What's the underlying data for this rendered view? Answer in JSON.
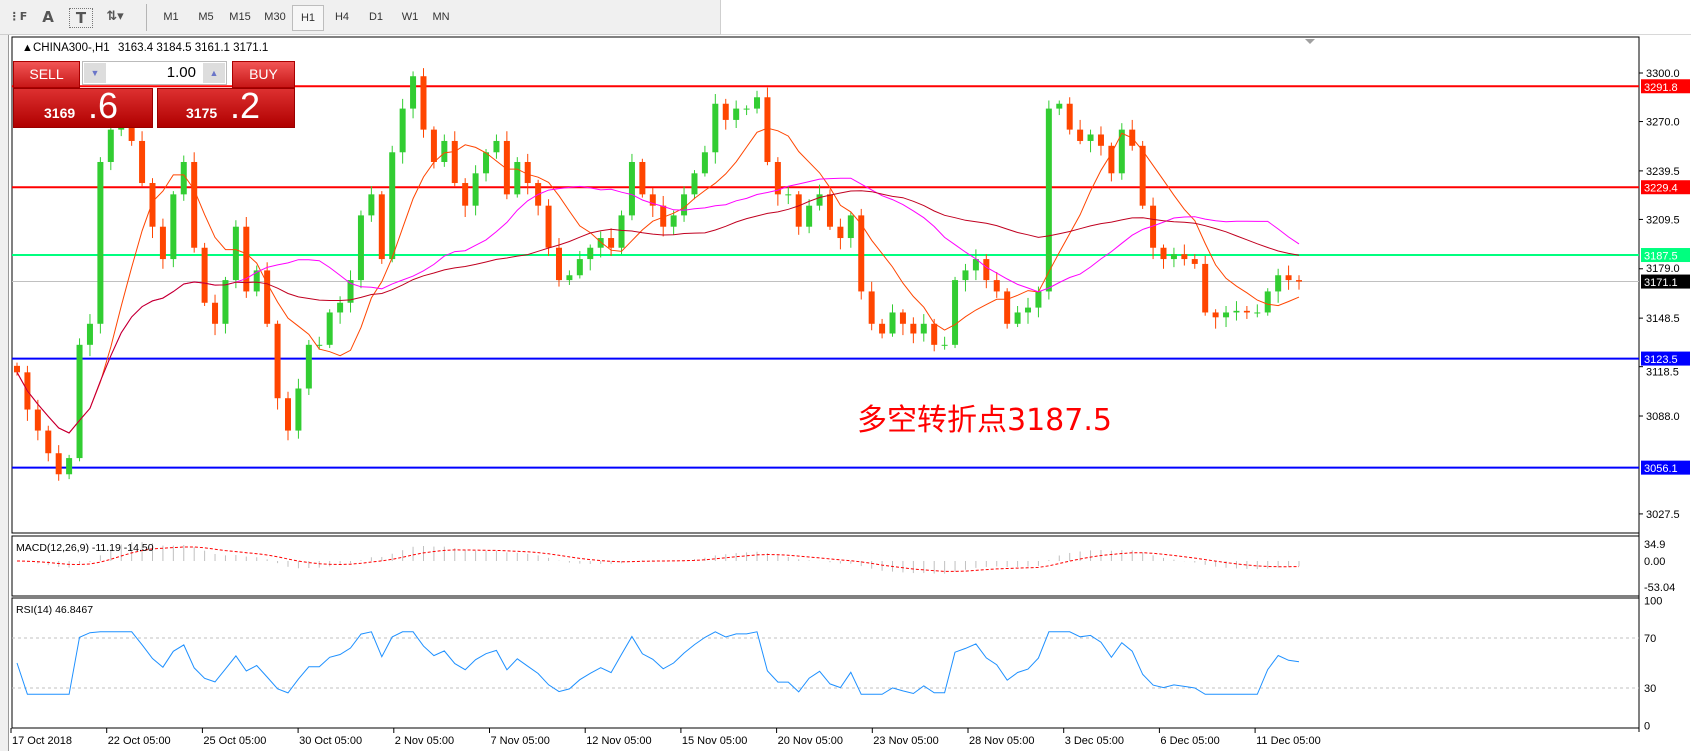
{
  "toolbar": {
    "tools": [
      {
        "name": "grid-fibo-icon",
        "glyph": "⋮F"
      },
      {
        "name": "text-icon",
        "glyph": "A"
      },
      {
        "name": "text-label-icon",
        "glyph": "T"
      },
      {
        "name": "arrows-dropdown-icon",
        "glyph": "⇅▾"
      }
    ],
    "timeframes": [
      "M1",
      "M5",
      "M15",
      "M30",
      "H1",
      "H4",
      "D1",
      "W1",
      "MN"
    ],
    "active_timeframe": "H1"
  },
  "header": {
    "symbol": "CHINA300-,H1",
    "ohlc": "3163.4 3184.5 3161.1 3171.1"
  },
  "trade_panel": {
    "sell_label": "SELL",
    "buy_label": "BUY",
    "volume": "1.00",
    "sell_price_main": "3169",
    "sell_price_big": ".6",
    "buy_price_main": "3175",
    "buy_price_big": ".2"
  },
  "annotation": "多空转折点3187.5",
  "colors": {
    "bull": "#32cd32",
    "bear": "#ff4500",
    "resistance": "#ff0000",
    "pivot": "#00ff7f",
    "support": "#0000ff",
    "ma_fast": "#ff4500",
    "ma_mid": "#ff00ff",
    "ma_slow": "#c00020",
    "rsi": "#1e90ff",
    "macd_signal": "#ff0000",
    "macd_hist": "#c0c0c0"
  },
  "chart_data": {
    "type": "candlestick",
    "price_axis": {
      "ticks": [
        "3300.0",
        "3270.0",
        "3239.5",
        "3209.5",
        "3179.0",
        "3148.5",
        "3118.5",
        "3088.0",
        "3027.5"
      ],
      "range": [
        3027.5,
        3300.0
      ]
    },
    "time_axis": [
      "17 Oct 2018",
      "22 Oct 05:00",
      "25 Oct 05:00",
      "30 Oct 05:00",
      "2 Nov 05:00",
      "7 Nov 05:00",
      "12 Nov 05:00",
      "15 Nov 05:00",
      "20 Nov 05:00",
      "23 Nov 05:00",
      "28 Nov 05:00",
      "3 Dec 05:00",
      "6 Dec 05:00",
      "11 Dec 05:00"
    ],
    "horizontal_lines": [
      {
        "value": "3291.8",
        "type": "resistance"
      },
      {
        "value": "3229.4",
        "type": "resistance"
      },
      {
        "value": "3187.5",
        "type": "pivot"
      },
      {
        "value": "3171.1",
        "type": "current"
      },
      {
        "value": "3123.5",
        "type": "support"
      },
      {
        "value": "3056.1",
        "type": "support"
      }
    ],
    "close": [
      3115,
      3092,
      3079,
      3065,
      3052,
      3062,
      3132,
      3145,
      3245,
      3265,
      3281,
      3258,
      3232,
      3205,
      3185,
      3225,
      3245,
      3192,
      3158,
      3145,
      3172,
      3205,
      3165,
      3178,
      3145,
      3099,
      3079,
      3105,
      3132,
      3132,
      3152,
      3158,
      3172,
      3212,
      3225,
      3185,
      3251,
      3278,
      3298,
      3265,
      3245,
      3258,
      3232,
      3218,
      3238,
      3251,
      3258,
      3225,
      3245,
      3232,
      3218,
      3192,
      3172,
      3175,
      3185,
      3192,
      3198,
      3192,
      3212,
      3245,
      3225,
      3218,
      3205,
      3212,
      3225,
      3238,
      3251,
      3281,
      3271,
      3278,
      3278,
      3285,
      3245,
      3225,
      3225,
      3205,
      3218,
      3225,
      3205,
      3198,
      3212,
      3165,
      3145,
      3139,
      3152,
      3145,
      3139,
      3145,
      3132,
      3132,
      3172,
      3178,
      3185,
      3172,
      3165,
      3145,
      3152,
      3155,
      3165,
      3278,
      3281,
      3265,
      3258,
      3262,
      3255,
      3238,
      3265,
      3255,
      3218,
      3192,
      3185,
      3188,
      3185,
      3182,
      3152,
      3149,
      3152,
      3153,
      3152,
      3152,
      3165,
      3175,
      3172,
      3171.1
    ],
    "macd": {
      "label": "MACD(12,26,9) -11.19 -14.50",
      "ticks": [
        "34.9",
        "0.00",
        "-53.04"
      ]
    },
    "rsi": {
      "label": "RSI(14) 46.8467",
      "ticks": [
        "100",
        "70",
        "30",
        "0"
      ],
      "levels": [
        70,
        30
      ]
    }
  }
}
